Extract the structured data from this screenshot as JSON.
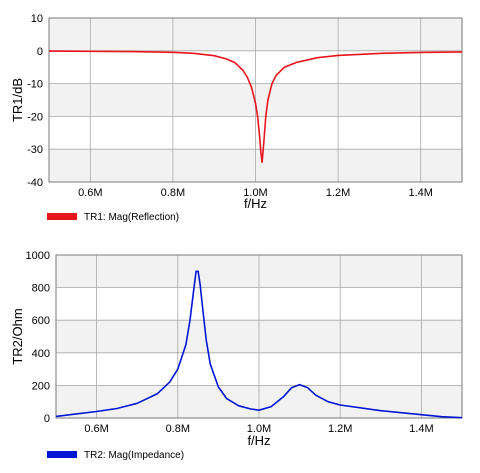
{
  "chart_data": [
    {
      "type": "line",
      "xlabel": "f/Hz",
      "ylabel": "TR1/dB",
      "xlim": [
        0.5,
        1.5
      ],
      "ylim": [
        -40,
        10
      ],
      "xticks": [
        0.6,
        0.8,
        1.0,
        1.2,
        1.4
      ],
      "xtick_labels": [
        "0.6M",
        "0.8M",
        "1.0M",
        "1.2M",
        "1.4M"
      ],
      "yticks": [
        10,
        0,
        -10,
        -20,
        -30,
        -40
      ],
      "ytick_labels": [
        "10",
        "0",
        "-10",
        "-20",
        "-30",
        "-40"
      ],
      "grid": true,
      "legend_position": "bottom-left",
      "color": "#e8141b",
      "series": [
        {
          "name": "TR1: Mag(Reflection)",
          "x": [
            0.5,
            0.6,
            0.7,
            0.8,
            0.85,
            0.9,
            0.93,
            0.95,
            0.97,
            0.98,
            0.99,
            1.0,
            1.005,
            1.01,
            1.013,
            1.016,
            1.02,
            1.025,
            1.03,
            1.04,
            1.05,
            1.07,
            1.1,
            1.15,
            1.2,
            1.3,
            1.4,
            1.5
          ],
          "y": [
            -0.1,
            -0.15,
            -0.25,
            -0.45,
            -0.75,
            -1.5,
            -2.5,
            -3.6,
            -6.0,
            -8.0,
            -11.0,
            -16.0,
            -20.0,
            -26.0,
            -31.0,
            -34.0,
            -28.0,
            -20.0,
            -15.0,
            -10.0,
            -7.5,
            -5.0,
            -3.5,
            -2.1,
            -1.4,
            -0.8,
            -0.5,
            -0.35
          ]
        }
      ]
    },
    {
      "type": "line",
      "xlabel": "f/Hz",
      "ylabel": "TR2/Ohm",
      "xlim": [
        0.5,
        1.5
      ],
      "ylim": [
        0,
        1000
      ],
      "xticks": [
        0.6,
        0.8,
        1.0,
        1.2,
        1.4
      ],
      "xtick_labels": [
        "0.6M",
        "0.8M",
        "1.0M",
        "1.2M",
        "1.4M"
      ],
      "yticks": [
        1000,
        800,
        600,
        400,
        200,
        0
      ],
      "ytick_labels": [
        "1000",
        "800",
        "600",
        "400",
        "200",
        "0"
      ],
      "grid": true,
      "legend_position": "bottom-left",
      "color": "#0016d4",
      "series": [
        {
          "name": "TR2: Mag(Impedance)",
          "x": [
            0.5,
            0.55,
            0.6,
            0.65,
            0.7,
            0.75,
            0.78,
            0.8,
            0.82,
            0.83,
            0.84,
            0.845,
            0.85,
            0.855,
            0.86,
            0.87,
            0.88,
            0.9,
            0.92,
            0.95,
            0.98,
            1.0,
            1.03,
            1.06,
            1.08,
            1.1,
            1.12,
            1.14,
            1.17,
            1.2,
            1.3,
            1.4,
            1.45,
            1.5
          ],
          "y": [
            10,
            25,
            40,
            58,
            90,
            150,
            220,
            300,
            450,
            600,
            800,
            900,
            900,
            820,
            700,
            480,
            330,
            190,
            120,
            75,
            55,
            48,
            70,
            130,
            185,
            205,
            185,
            140,
            100,
            80,
            45,
            20,
            8,
            2
          ]
        }
      ]
    }
  ]
}
